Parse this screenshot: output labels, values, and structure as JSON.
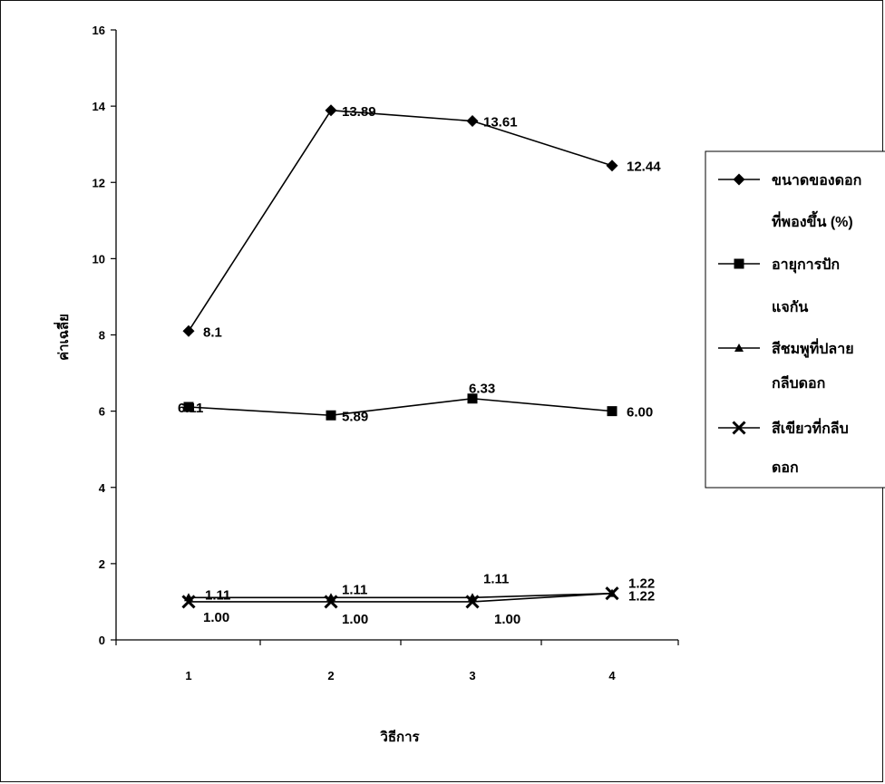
{
  "chart_data": {
    "type": "line",
    "xlabel": "วิธีการ",
    "ylabel": "ค่าเฉลี่ย",
    "categories": [
      "1",
      "2",
      "3",
      "4"
    ],
    "ylim": [
      0,
      16
    ],
    "yticks": [
      "0",
      "2",
      "4",
      "6",
      "8",
      "10",
      "12",
      "14",
      "16"
    ],
    "grid": false,
    "legend_position": "right",
    "series": [
      {
        "name_lines": [
          "ขนาดของดอก",
          "ที่พองขึ้น (%)"
        ],
        "marker": "diamond",
        "values": [
          8.1,
          13.89,
          13.61,
          12.44
        ],
        "labels": [
          "8.1",
          "13.89",
          "13.61",
          "12.44"
        ]
      },
      {
        "name_lines": [
          "อายุการปัก",
          "แจกัน"
        ],
        "marker": "square",
        "values": [
          6.11,
          5.89,
          6.33,
          6.0
        ],
        "labels": [
          "6.11",
          "5.89",
          "6.33",
          "6.00"
        ]
      },
      {
        "name_lines": [
          "สีชมพูที่ปลาย",
          "กลีบดอก"
        ],
        "marker": "triangle",
        "values": [
          1.11,
          1.11,
          1.11,
          1.22
        ],
        "labels": [
          "1.11",
          "1.11",
          "1.11",
          "1.22"
        ]
      },
      {
        "name_lines": [
          "สีเขียวที่กลีบ",
          "ดอก"
        ],
        "marker": "x",
        "values": [
          1.0,
          1.0,
          1.0,
          1.22
        ],
        "labels": [
          "1.00",
          "1.00",
          "1.00",
          "1.22"
        ]
      }
    ]
  }
}
